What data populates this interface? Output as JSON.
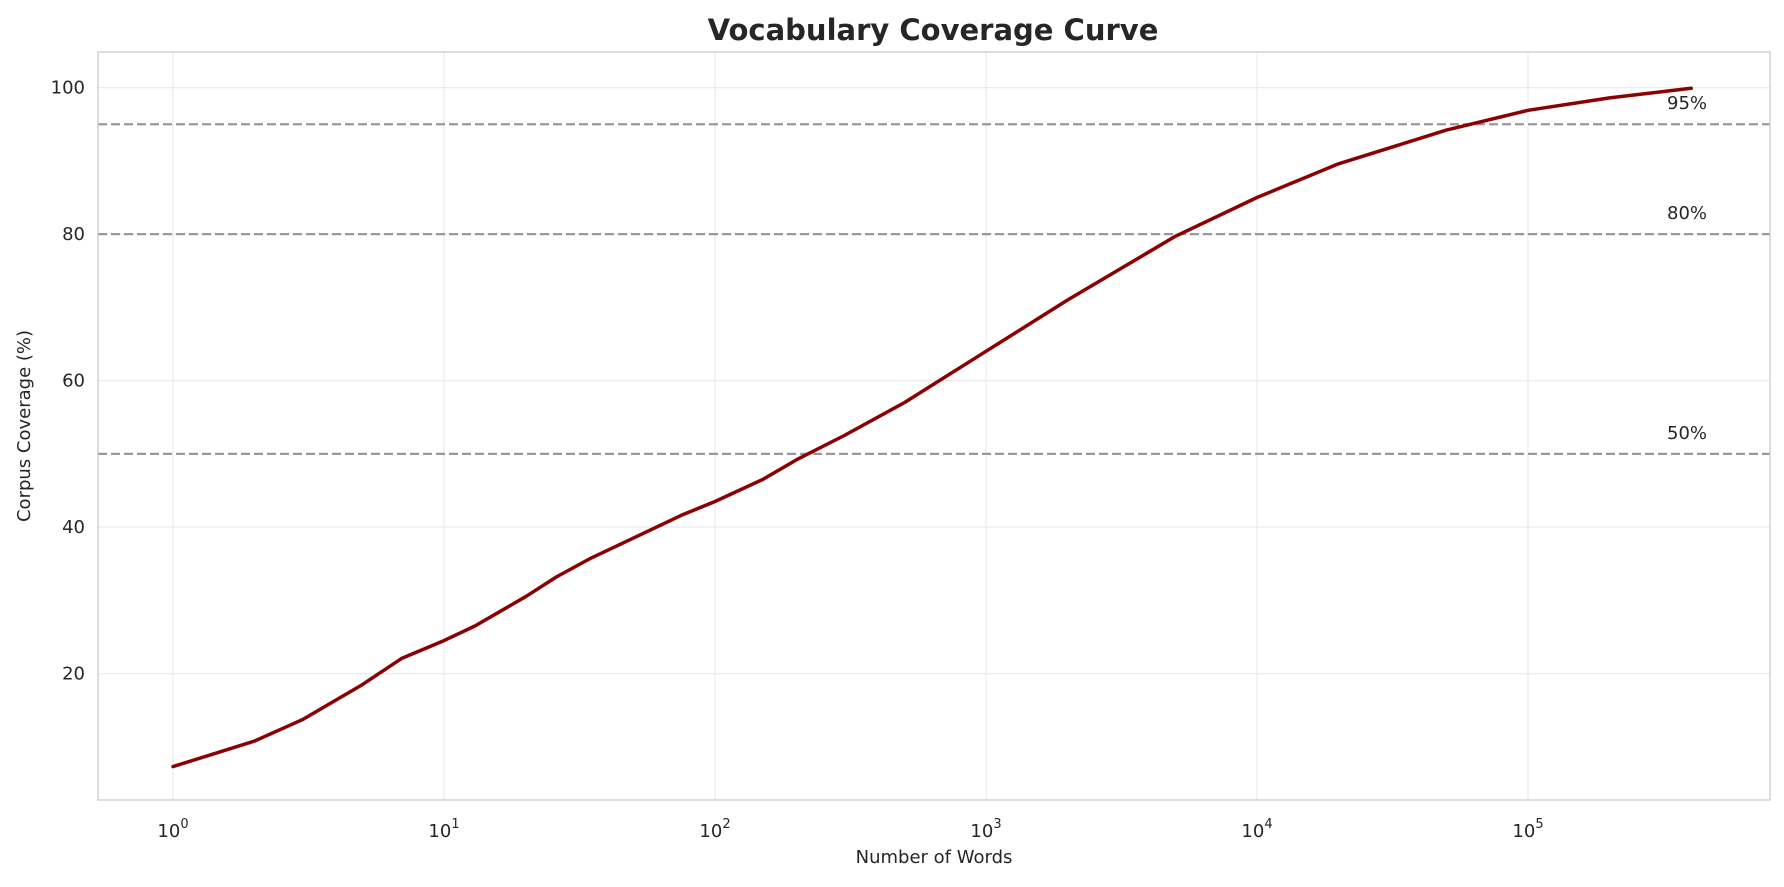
{
  "chart_data": {
    "type": "line",
    "title": "Vocabulary Coverage Curve",
    "xlabel": "Number of Words",
    "ylabel": "Corpus Coverage (%)",
    "x_scale": "log",
    "xlim": [
      0.6,
      800000
    ],
    "ylim": [
      3,
      105
    ],
    "grid": true,
    "x_ticks": [
      {
        "base": "10",
        "exp": "0",
        "value": 1
      },
      {
        "base": "10",
        "exp": "1",
        "value": 10
      },
      {
        "base": "10",
        "exp": "2",
        "value": 100
      },
      {
        "base": "10",
        "exp": "3",
        "value": 1000
      },
      {
        "base": "10",
        "exp": "4",
        "value": 10000
      },
      {
        "base": "10",
        "exp": "5",
        "value": 100000
      }
    ],
    "y_ticks": [
      "20",
      "40",
      "60",
      "80",
      "100"
    ],
    "line_color": "#8b0000",
    "reference_color": "#999999",
    "series": [
      {
        "x": [
          1,
          2,
          3,
          5,
          7,
          10,
          13,
          20,
          26,
          35,
          50,
          75,
          100,
          150,
          200,
          300,
          500,
          1000,
          2000,
          5000,
          10000,
          20000,
          50000,
          100000,
          200000,
          400000
        ],
        "y": [
          7.3,
          10.8,
          13.7,
          18.5,
          22.1,
          24.5,
          26.5,
          30.5,
          33.2,
          35.8,
          38.5,
          41.6,
          43.5,
          46.5,
          49.2,
          52.5,
          57,
          64,
          71,
          79.7,
          85,
          89.6,
          94.2,
          96.9,
          98.6,
          99.9
        ]
      }
    ],
    "reference_lines": [
      {
        "y": 95,
        "label": "95%"
      },
      {
        "y": 80,
        "label": "80%"
      },
      {
        "y": 50,
        "label": "50%"
      }
    ]
  }
}
